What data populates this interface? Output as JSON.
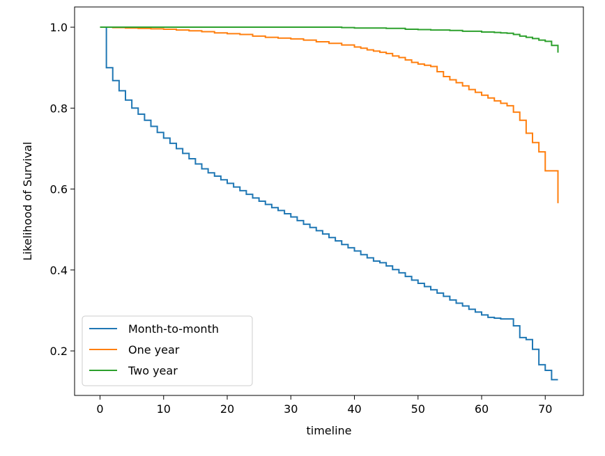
{
  "chart_data": {
    "type": "line",
    "step": true,
    "title": "",
    "xlabel": "timeline",
    "ylabel": "Likelihood of Survival",
    "xlim": [
      -4,
      76
    ],
    "ylim": [
      0.09,
      1.05
    ],
    "xticks": [
      0,
      10,
      20,
      30,
      40,
      50,
      60,
      70
    ],
    "yticks": [
      0.2,
      0.4,
      0.6,
      0.8,
      1.0
    ],
    "xtick_labels": [
      "0",
      "10",
      "20",
      "30",
      "40",
      "50",
      "60",
      "70"
    ],
    "ytick_labels": [
      "0.2",
      "0.4",
      "0.6",
      "0.8",
      "1.0"
    ],
    "legend": {
      "placement": "lower-left"
    },
    "grid": false,
    "series": [
      {
        "name": "Month-to-month",
        "color": "#1f77b4",
        "x": [
          0,
          1,
          2,
          3,
          4,
          5,
          6,
          7,
          8,
          9,
          10,
          11,
          12,
          13,
          14,
          15,
          16,
          17,
          18,
          19,
          20,
          21,
          22,
          23,
          24,
          25,
          26,
          27,
          28,
          29,
          30,
          31,
          32,
          33,
          34,
          35,
          36,
          37,
          38,
          39,
          40,
          41,
          42,
          43,
          44,
          45,
          46,
          47,
          48,
          49,
          50,
          51,
          52,
          53,
          54,
          55,
          56,
          57,
          58,
          59,
          60,
          61,
          62,
          63,
          64,
          65,
          66,
          67,
          68,
          69,
          70,
          71,
          72
        ],
        "y": [
          1.0,
          0.9,
          0.868,
          0.843,
          0.82,
          0.8,
          0.785,
          0.77,
          0.755,
          0.74,
          0.726,
          0.713,
          0.7,
          0.688,
          0.675,
          0.662,
          0.65,
          0.64,
          0.632,
          0.623,
          0.614,
          0.605,
          0.596,
          0.587,
          0.578,
          0.57,
          0.562,
          0.554,
          0.547,
          0.539,
          0.531,
          0.522,
          0.513,
          0.505,
          0.497,
          0.489,
          0.48,
          0.472,
          0.463,
          0.455,
          0.447,
          0.438,
          0.43,
          0.422,
          0.418,
          0.41,
          0.401,
          0.393,
          0.384,
          0.375,
          0.367,
          0.359,
          0.351,
          0.343,
          0.335,
          0.326,
          0.318,
          0.311,
          0.303,
          0.296,
          0.289,
          0.283,
          0.281,
          0.279,
          0.279,
          0.262,
          0.233,
          0.228,
          0.204,
          0.166,
          0.152,
          0.129,
          0.129
        ]
      },
      {
        "name": "One year",
        "color": "#ff7f0e",
        "x": [
          0,
          2,
          4,
          6,
          8,
          10,
          12,
          14,
          16,
          18,
          20,
          22,
          24,
          26,
          28,
          30,
          32,
          34,
          36,
          38,
          40,
          41,
          42,
          43,
          44,
          45,
          46,
          47,
          48,
          49,
          50,
          51,
          52,
          53,
          54,
          55,
          56,
          57,
          58,
          59,
          60,
          61,
          62,
          63,
          64,
          65,
          66,
          67,
          68,
          69,
          70,
          72
        ],
        "y": [
          1.0,
          0.999,
          0.998,
          0.997,
          0.996,
          0.995,
          0.993,
          0.991,
          0.989,
          0.986,
          0.984,
          0.982,
          0.978,
          0.975,
          0.973,
          0.971,
          0.968,
          0.964,
          0.96,
          0.956,
          0.951,
          0.948,
          0.944,
          0.941,
          0.938,
          0.935,
          0.929,
          0.925,
          0.919,
          0.913,
          0.909,
          0.906,
          0.903,
          0.89,
          0.878,
          0.87,
          0.863,
          0.855,
          0.846,
          0.839,
          0.832,
          0.825,
          0.818,
          0.812,
          0.806,
          0.79,
          0.77,
          0.738,
          0.715,
          0.692,
          0.645,
          0.565
        ]
      },
      {
        "name": "Two year",
        "color": "#2ca02c",
        "x": [
          0,
          10,
          20,
          30,
          35,
          38,
          40,
          45,
          48,
          50,
          52,
          55,
          57,
          60,
          62,
          63,
          64,
          65,
          66,
          67,
          68,
          69,
          70,
          71,
          72
        ],
        "y": [
          1.0,
          1.0,
          1.0,
          1.0,
          1.0,
          0.999,
          0.998,
          0.997,
          0.995,
          0.994,
          0.993,
          0.992,
          0.99,
          0.988,
          0.987,
          0.986,
          0.985,
          0.982,
          0.978,
          0.975,
          0.972,
          0.968,
          0.965,
          0.955,
          0.937
        ]
      }
    ]
  }
}
